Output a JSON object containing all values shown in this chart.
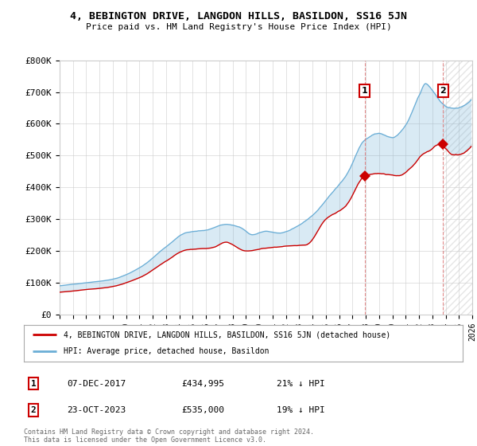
{
  "title": "4, BEBINGTON DRIVE, LANGDON HILLS, BASILDON, SS16 5JN",
  "subtitle": "Price paid vs. HM Land Registry's House Price Index (HPI)",
  "hpi_color": "#6baed6",
  "price_color": "#cc0000",
  "marker1_year": 2017.92,
  "marker1_price": 434995,
  "marker2_year": 2023.81,
  "marker2_price": 535000,
  "vline_color": "#e08080",
  "annotation_box_color": "#cc0000",
  "legend_label1": "4, BEBINGTON DRIVE, LANGDON HILLS, BASILDON, SS16 5JN (detached house)",
  "legend_label2": "HPI: Average price, detached house, Basildon",
  "table_row1": [
    "1",
    "07-DEC-2017",
    "£434,995",
    "21% ↓ HPI"
  ],
  "table_row2": [
    "2",
    "23-OCT-2023",
    "£535,000",
    "19% ↓ HPI"
  ],
  "footer": "Contains HM Land Registry data © Crown copyright and database right 2024.\nThis data is licensed under the Open Government Licence v3.0.",
  "background_color": "#ffffff",
  "grid_color": "#cccccc",
  "xmin": 1995,
  "xmax": 2026,
  "ylim": [
    0,
    800000
  ],
  "yticks": [
    0,
    100000,
    200000,
    300000,
    400000,
    500000,
    600000,
    700000,
    800000
  ],
  "ytick_labels": [
    "£0",
    "£100K",
    "£200K",
    "£300K",
    "£400K",
    "£500K",
    "£600K",
    "£700K",
    "£800K"
  ]
}
